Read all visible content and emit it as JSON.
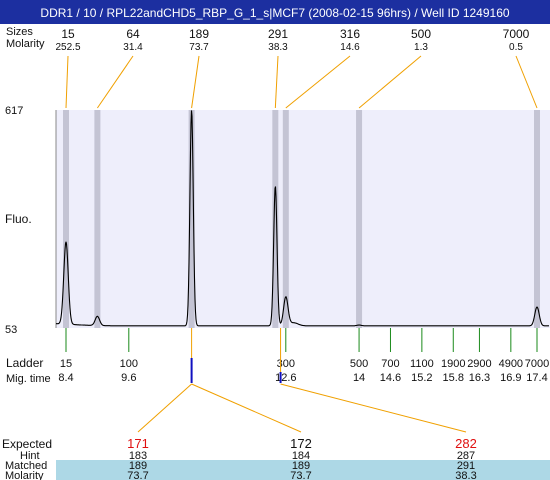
{
  "header": {
    "title": "DDR1 / 10 / RPL22andCHD5_RBP_G_1_s|MCF7 (2008-02-15 96hrs) / Well ID 1249160"
  },
  "labels": {
    "sizes": "Sizes",
    "molarity": "Molarity",
    "fluo": "Fluo.",
    "ladder": "Ladder",
    "mig_time": "Mig. time",
    "expected": "Expected",
    "hint": "Hint",
    "matched": "Matched",
    "molarity_bottom": "Molarity"
  },
  "colors": {
    "header_bg": "#1c2fa0",
    "plot_bg": "#eeeefb",
    "band": "#c4c4d4",
    "callout": "#f0a000",
    "tick": "#1a8a1a",
    "mark": "#1010c0",
    "expected_red": "#e01010",
    "table_bg": "#add8e6"
  },
  "chart_data": {
    "type": "line",
    "ylim": [
      53,
      617
    ],
    "y_ticks": [
      "617",
      "53"
    ],
    "peaks": [
      {
        "size": "15",
        "molarity": "252.5",
        "mig": 8.4
      },
      {
        "size": "64",
        "molarity": "31.4",
        "mig": 9.0
      },
      {
        "size": "189",
        "molarity": "73.7",
        "mig": 10.8
      },
      {
        "size": "291",
        "molarity": "38.3",
        "mig": 12.4
      },
      {
        "size": "316",
        "molarity": "14.6",
        "mig": 12.6
      },
      {
        "size": "500",
        "molarity": "1.3",
        "mig": 14
      },
      {
        "size": "7000",
        "molarity": "0.5",
        "mig": 17.4
      }
    ],
    "ladder": [
      {
        "size": "15",
        "mig": "8.4",
        "t": 8.4
      },
      {
        "size": "100",
        "mig": "9.6",
        "t": 9.6
      },
      {
        "size": "300",
        "mig": "12.6",
        "t": 12.6
      },
      {
        "size": "500",
        "mig": "14",
        "t": 14
      },
      {
        "size": "700",
        "mig": "14.6",
        "t": 14.6
      },
      {
        "size": "1100",
        "mig": "15.2",
        "t": 15.2
      },
      {
        "size": "1900",
        "mig": "15.8",
        "t": 15.8
      },
      {
        "size": "2900",
        "mig": "16.3",
        "t": 16.3
      },
      {
        "size": "4900",
        "mig": "16.9",
        "t": 16.9
      },
      {
        "size": "7000",
        "mig": "17.4",
        "t": 17.4
      }
    ],
    "trace_peaks": [
      {
        "t": 8.4,
        "h": 270
      },
      {
        "t": 9.0,
        "h": 80
      },
      {
        "t": 10.8,
        "h": 617
      },
      {
        "t": 12.4,
        "h": 420
      },
      {
        "t": 12.6,
        "h": 130
      },
      {
        "t": 14.0,
        "h": 58
      },
      {
        "t": 17.4,
        "h": 105
      }
    ],
    "expected": [
      {
        "expected": "171",
        "hint": "183",
        "matched": "189",
        "molarity": "73.7",
        "from_t": 10.8
      },
      {
        "expected": "172",
        "hint": "184",
        "matched": "189",
        "molarity": "73.7",
        "from_t": 10.8
      },
      {
        "expected": "282",
        "hint": "287",
        "matched": "291",
        "molarity": "38.3",
        "from_t": 12.5
      }
    ]
  }
}
